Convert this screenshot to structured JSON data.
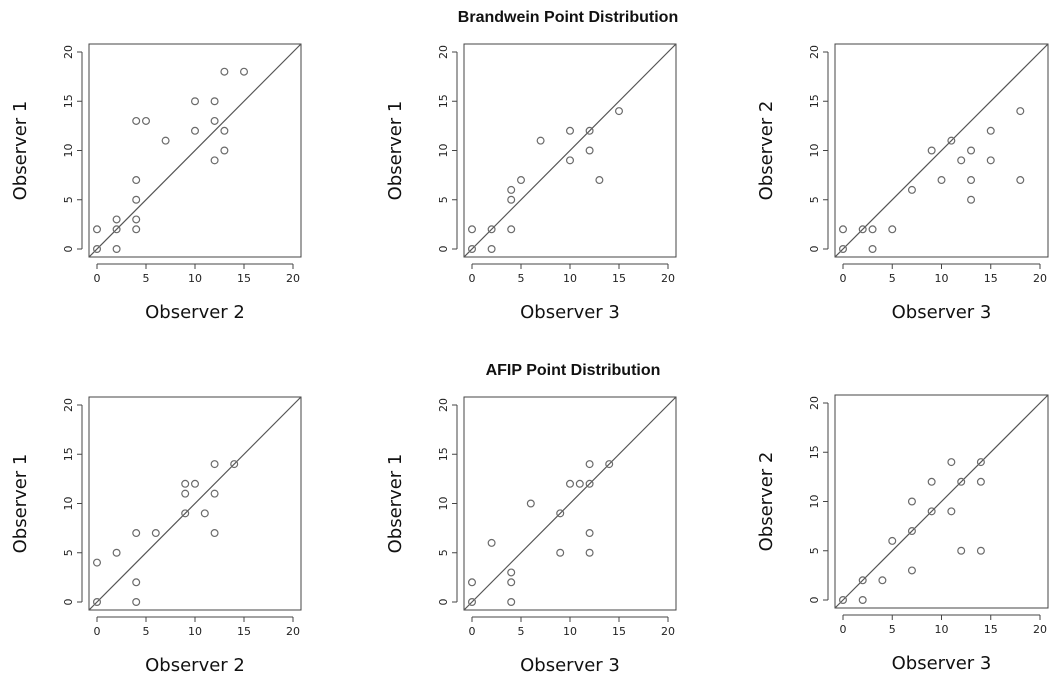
{
  "sections": [
    {
      "title": "Brandwein Point Distribution"
    },
    {
      "title": "AFIP Point Distribution"
    }
  ],
  "chart_data": [
    {
      "type": "scatter",
      "title": "Brandwein Point Distribution",
      "xlabel": "Observer 2",
      "ylabel": "Observer 1",
      "xlim": [
        0,
        20
      ],
      "ylim": [
        0,
        20
      ],
      "xticks": [
        "0",
        "5",
        "10",
        "15",
        "20"
      ],
      "yticks": [
        "0",
        "5",
        "10",
        "15",
        "20"
      ],
      "reference_line": "y = x",
      "points": [
        [
          0,
          0
        ],
        [
          0,
          2
        ],
        [
          2,
          0
        ],
        [
          2,
          2
        ],
        [
          2,
          3
        ],
        [
          4,
          2
        ],
        [
          4,
          3
        ],
        [
          4,
          5
        ],
        [
          4,
          7
        ],
        [
          4,
          13
        ],
        [
          5,
          13
        ],
        [
          7,
          11
        ],
        [
          10,
          12
        ],
        [
          10,
          15
        ],
        [
          12,
          9
        ],
        [
          12,
          13
        ],
        [
          12,
          15
        ],
        [
          13,
          10
        ],
        [
          13,
          12
        ],
        [
          13,
          18
        ],
        [
          15,
          18
        ]
      ]
    },
    {
      "type": "scatter",
      "title": "",
      "xlabel": "Observer 3",
      "ylabel": "Observer 1",
      "xlim": [
        0,
        20
      ],
      "ylim": [
        0,
        20
      ],
      "xticks": [
        "0",
        "5",
        "10",
        "15",
        "20"
      ],
      "yticks": [
        "0",
        "5",
        "10",
        "15",
        "20"
      ],
      "reference_line": "y = x",
      "points": [
        [
          0,
          0
        ],
        [
          0,
          2
        ],
        [
          2,
          0
        ],
        [
          2,
          2
        ],
        [
          4,
          2
        ],
        [
          4,
          5
        ],
        [
          4,
          6
        ],
        [
          5,
          7
        ],
        [
          7,
          11
        ],
        [
          10,
          9
        ],
        [
          10,
          12
        ],
        [
          12,
          10
        ],
        [
          12,
          12
        ],
        [
          13,
          7
        ],
        [
          15,
          14
        ]
      ]
    },
    {
      "type": "scatter",
      "title": "",
      "xlabel": "Observer 3",
      "ylabel": "Observer 2",
      "xlim": [
        0,
        20
      ],
      "ylim": [
        0,
        20
      ],
      "xticks": [
        "0",
        "5",
        "10",
        "15",
        "20"
      ],
      "yticks": [
        "0",
        "5",
        "10",
        "15",
        "20"
      ],
      "reference_line": "y = x",
      "points": [
        [
          0,
          0
        ],
        [
          0,
          2
        ],
        [
          2,
          2
        ],
        [
          3,
          0
        ],
        [
          3,
          2
        ],
        [
          5,
          2
        ],
        [
          7,
          6
        ],
        [
          9,
          10
        ],
        [
          10,
          7
        ],
        [
          11,
          11
        ],
        [
          12,
          9
        ],
        [
          13,
          5
        ],
        [
          13,
          7
        ],
        [
          13,
          10
        ],
        [
          15,
          9
        ],
        [
          15,
          12
        ],
        [
          18,
          7
        ],
        [
          18,
          14
        ]
      ]
    },
    {
      "type": "scatter",
      "title": "AFIP Point Distribution",
      "xlabel": "Observer 2",
      "ylabel": "Observer 1",
      "xlim": [
        0,
        20
      ],
      "ylim": [
        0,
        20
      ],
      "xticks": [
        "0",
        "5",
        "10",
        "15",
        "20"
      ],
      "yticks": [
        "0",
        "5",
        "10",
        "15",
        "20"
      ],
      "reference_line": "y = x",
      "points": [
        [
          0,
          0
        ],
        [
          0,
          4
        ],
        [
          2,
          5
        ],
        [
          4,
          0
        ],
        [
          4,
          2
        ],
        [
          4,
          7
        ],
        [
          6,
          7
        ],
        [
          9,
          9
        ],
        [
          9,
          11
        ],
        [
          9,
          12
        ],
        [
          10,
          12
        ],
        [
          11,
          9
        ],
        [
          12,
          7
        ],
        [
          12,
          11
        ],
        [
          12,
          14
        ],
        [
          14,
          14
        ]
      ]
    },
    {
      "type": "scatter",
      "title": "",
      "xlabel": "Observer 3",
      "ylabel": "Observer 1",
      "xlim": [
        0,
        20
      ],
      "ylim": [
        0,
        20
      ],
      "xticks": [
        "0",
        "5",
        "10",
        "15",
        "20"
      ],
      "yticks": [
        "0",
        "5",
        "10",
        "15",
        "20"
      ],
      "reference_line": "y = x",
      "points": [
        [
          0,
          0
        ],
        [
          0,
          2
        ],
        [
          2,
          6
        ],
        [
          4,
          0
        ],
        [
          4,
          2
        ],
        [
          4,
          3
        ],
        [
          6,
          10
        ],
        [
          9,
          5
        ],
        [
          9,
          9
        ],
        [
          10,
          12
        ],
        [
          11,
          12
        ],
        [
          12,
          5
        ],
        [
          12,
          7
        ],
        [
          12,
          12
        ],
        [
          12,
          14
        ],
        [
          14,
          14
        ]
      ]
    },
    {
      "type": "scatter",
      "title": "",
      "xlabel": "Observer 3",
      "ylabel": "Observer 2",
      "xlim": [
        0,
        20
      ],
      "ylim": [
        0,
        20
      ],
      "xticks": [
        "0",
        "5",
        "10",
        "15",
        "20"
      ],
      "yticks": [
        "0",
        "5",
        "10",
        "15",
        "20"
      ],
      "reference_line": "y = x",
      "points": [
        [
          0,
          0
        ],
        [
          2,
          0
        ],
        [
          2,
          2
        ],
        [
          4,
          2
        ],
        [
          5,
          6
        ],
        [
          7,
          3
        ],
        [
          7,
          7
        ],
        [
          7,
          10
        ],
        [
          9,
          9
        ],
        [
          9,
          12
        ],
        [
          11,
          9
        ],
        [
          11,
          14
        ],
        [
          12,
          5
        ],
        [
          12,
          12
        ],
        [
          14,
          5
        ],
        [
          14,
          12
        ],
        [
          14,
          14
        ]
      ]
    }
  ]
}
